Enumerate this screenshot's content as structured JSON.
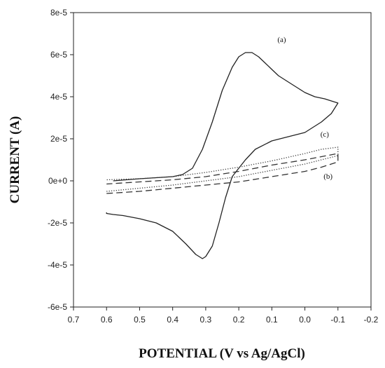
{
  "chart_data": {
    "type": "line",
    "title": "",
    "xlabel": "POTENTIAL (V vs Ag/AgCl)",
    "ylabel": "CURRENT (A)",
    "xlim": [
      0.7,
      -0.2
    ],
    "ylim": [
      -6e-05,
      8e-05
    ],
    "x_reversed": true,
    "x_ticks": [
      0.7,
      0.6,
      0.5,
      0.4,
      0.3,
      0.2,
      0.1,
      0.0,
      -0.1,
      -0.2
    ],
    "x_tick_labels": [
      "0.7",
      "0.6",
      "0.5",
      "0.4",
      "0.3",
      "0.2",
      "0.1",
      "0.0",
      "-0.1",
      "-0.2"
    ],
    "y_ticks": [
      -6e-05,
      -4e-05,
      -2e-05,
      0,
      2e-05,
      4e-05,
      6e-05,
      8e-05
    ],
    "y_tick_labels": [
      "-6e-5",
      "-4e-5",
      "-2e-5",
      "0e+0",
      "2e-5",
      "4e-5",
      "6e-5",
      "8e-5"
    ],
    "grid": false,
    "legend": "none",
    "annotations": [
      {
        "text": "(a)",
        "x": 0.07,
        "y": 6.6e-05
      },
      {
        "text": "(c)",
        "x": -0.06,
        "y": 2.1e-05
      },
      {
        "text": "(b)",
        "x": -0.07,
        "y": 1e-06
      }
    ],
    "series": [
      {
        "line_style": "solid",
        "color": "#222222",
        "x": [
          0.58,
          0.5,
          0.45,
          0.4,
          0.37,
          0.34,
          0.31,
          0.28,
          0.25,
          0.22,
          0.2,
          0.18,
          0.16,
          0.14,
          0.12,
          0.1,
          0.08,
          0.05,
          0.02,
          0.0,
          -0.03,
          -0.06,
          -0.08,
          -0.1,
          -0.1,
          -0.08,
          -0.05,
          -0.02,
          0.0,
          0.05,
          0.1,
          0.15,
          0.18,
          0.2,
          0.22,
          0.24,
          0.26,
          0.28,
          0.3,
          0.31,
          0.33,
          0.36,
          0.4,
          0.45,
          0.5,
          0.55,
          0.58,
          0.6,
          0.6
        ],
        "y": [
          0.0,
          1e-06,
          1.5e-06,
          2e-06,
          3e-06,
          6e-06,
          1.5e-05,
          2.8e-05,
          4.3e-05,
          5.4e-05,
          5.9e-05,
          6.1e-05,
          6.1e-05,
          5.9e-05,
          5.6e-05,
          5.3e-05,
          5e-05,
          4.7e-05,
          4.4e-05,
          4.2e-05,
          4e-05,
          3.9e-05,
          3.8e-05,
          3.7e-05,
          3.7e-05,
          3.2e-05,
          2.8e-05,
          2.5e-05,
          2.3e-05,
          2.1e-05,
          1.9e-05,
          1.5e-05,
          1e-05,
          6e-06,
          2e-06,
          -8e-06,
          -2e-05,
          -3.1e-05,
          -3.6e-05,
          -3.7e-05,
          -3.5e-05,
          -3e-05,
          -2.4e-05,
          -2e-05,
          -1.8e-05,
          -1.65e-05,
          -1.6e-05,
          -1.55e-05,
          -1.5e-05
        ]
      },
      {
        "line_style": "dotted",
        "color": "#333333",
        "x": [
          0.6,
          0.5,
          0.4,
          0.3,
          0.2,
          0.1,
          0.0,
          -0.05,
          -0.1,
          -0.1,
          -0.05,
          0.0,
          0.1,
          0.2,
          0.3,
          0.4,
          0.5,
          0.6
        ],
        "y": [
          -5e-06,
          -3.5e-06,
          -2e-06,
          0.0,
          2e-06,
          5e-06,
          8e-06,
          1e-05,
          1.2e-05,
          1.6e-05,
          1.5e-05,
          1.3e-05,
          9.5e-06,
          6.5e-06,
          4e-06,
          2e-06,
          1e-06,
          5e-07
        ]
      },
      {
        "line_style": "dashed",
        "color": "#333333",
        "x": [
          0.6,
          0.5,
          0.4,
          0.3,
          0.2,
          0.1,
          0.0,
          -0.05,
          -0.1,
          -0.1,
          -0.05,
          0.0,
          0.1,
          0.2,
          0.3,
          0.4,
          0.5,
          0.6
        ],
        "y": [
          -6e-06,
          -5e-06,
          -3.5e-06,
          -2e-06,
          -5e-07,
          2e-06,
          4.5e-06,
          6.5e-06,
          9e-06,
          1.3e-05,
          1.15e-05,
          1e-05,
          7.5e-06,
          4.5e-06,
          2e-06,
          5e-07,
          -5e-07,
          -1.5e-06
        ]
      }
    ]
  }
}
